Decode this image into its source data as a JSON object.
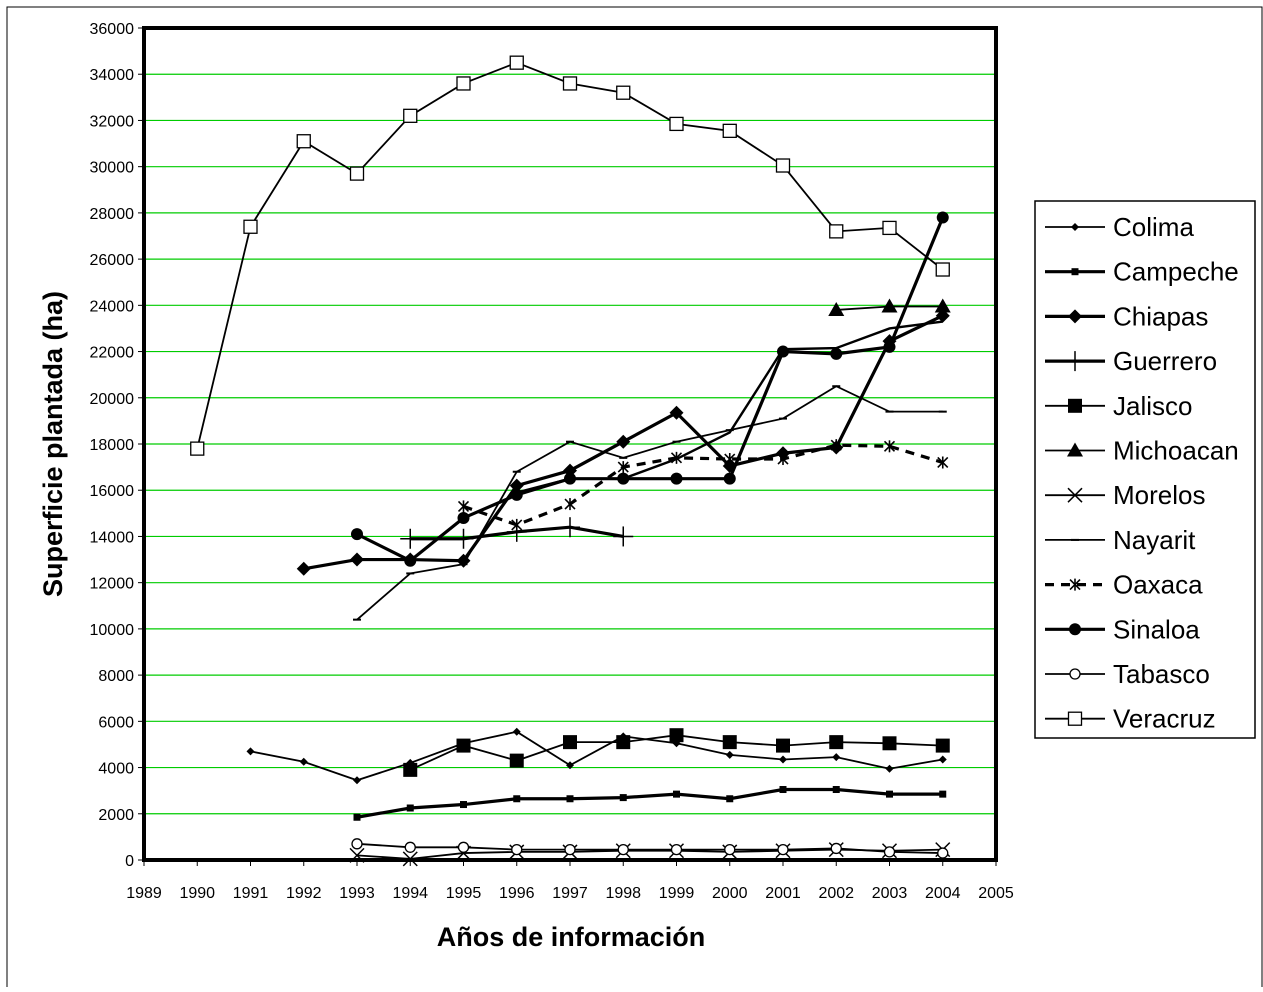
{
  "chart_data": {
    "type": "line",
    "xlabel": "Años de información",
    "ylabel": "Superficie plantada (ha)",
    "xlim": [
      1989,
      2005
    ],
    "ylim": [
      0,
      36000
    ],
    "x_ticks": [
      "1989",
      "1990",
      "1991",
      "1992",
      "1993",
      "1994",
      "1995",
      "1996",
      "1997",
      "1998",
      "1999",
      "2000",
      "2001",
      "2002",
      "2003",
      "2004",
      "2005"
    ],
    "y_ticks": [
      "0",
      "2000",
      "4000",
      "6000",
      "8000",
      "10000",
      "12000",
      "14000",
      "16000",
      "18000",
      "20000",
      "22000",
      "24000",
      "26000",
      "28000",
      "30000",
      "32000",
      "34000",
      "36000"
    ],
    "grid": true,
    "grid_color": "#00cc00",
    "legend_position": "right",
    "series": [
      {
        "name": "Colima",
        "marker": "diamond-small",
        "line": "thin",
        "points": [
          [
            1991,
            4700
          ],
          [
            1992,
            4250
          ],
          [
            1993,
            3450
          ],
          [
            1994,
            4200
          ],
          [
            1995,
            5050
          ],
          [
            1996,
            5550
          ],
          [
            1997,
            4100
          ],
          [
            1998,
            5350
          ],
          [
            1999,
            5050
          ],
          [
            2000,
            4550
          ],
          [
            2001,
            4350
          ],
          [
            2002,
            4450
          ],
          [
            2003,
            3950
          ],
          [
            2004,
            4350
          ]
        ]
      },
      {
        "name": "Campeche",
        "marker": "square-small",
        "line": "thick",
        "points": [
          [
            1993,
            1850
          ],
          [
            1994,
            2250
          ],
          [
            1995,
            2400
          ],
          [
            1996,
            2650
          ],
          [
            1997,
            2650
          ],
          [
            1998,
            2700
          ],
          [
            1999,
            2850
          ],
          [
            2000,
            2650
          ],
          [
            2001,
            3050
          ],
          [
            2002,
            3050
          ],
          [
            2003,
            2850
          ],
          [
            2004,
            2850
          ]
        ]
      },
      {
        "name": "Chiapas",
        "marker": "diamond",
        "line": "thick",
        "points": [
          [
            1992,
            12600
          ],
          [
            1993,
            13000
          ],
          [
            1994,
            13000
          ],
          [
            1995,
            12950
          ],
          [
            1996,
            16200
          ],
          [
            1997,
            16850
          ],
          [
            1998,
            18100
          ],
          [
            1999,
            19350
          ],
          [
            2000,
            17050
          ],
          [
            2001,
            17600
          ],
          [
            2002,
            17850
          ],
          [
            2003,
            22450
          ],
          [
            2004,
            23550
          ]
        ]
      },
      {
        "name": "Guerrero",
        "marker": "plus",
        "line": "thick",
        "points": [
          [
            1994,
            13900
          ],
          [
            1995,
            13900
          ],
          [
            1996,
            14200
          ],
          [
            1997,
            14400
          ],
          [
            1998,
            14000
          ]
        ]
      },
      {
        "name": "Jalisco",
        "marker": "square",
        "line": "thin",
        "points": [
          [
            1994,
            3900
          ],
          [
            1995,
            4950
          ],
          [
            1996,
            4300
          ],
          [
            1997,
            5100
          ],
          [
            1998,
            5100
          ],
          [
            1999,
            5400
          ],
          [
            2000,
            5100
          ],
          [
            2001,
            4950
          ],
          [
            2002,
            5100
          ],
          [
            2003,
            5050
          ],
          [
            2004,
            4950
          ]
        ]
      },
      {
        "name": "Michoacan",
        "marker": "triangle",
        "line": "thin",
        "points": [
          [
            2002,
            23800
          ],
          [
            2003,
            23950
          ],
          [
            2004,
            23950
          ]
        ]
      },
      {
        "name": "Morelos",
        "marker": "x",
        "line": "thin",
        "points": [
          [
            1993,
            200
          ],
          [
            1994,
            50
          ],
          [
            1995,
            300
          ],
          [
            1996,
            350
          ],
          [
            1997,
            350
          ],
          [
            1998,
            400
          ],
          [
            1999,
            400
          ],
          [
            2000,
            350
          ],
          [
            2001,
            400
          ],
          [
            2002,
            450
          ],
          [
            2003,
            400
          ],
          [
            2004,
            450
          ]
        ]
      },
      {
        "name": "Nayarit",
        "marker": "dash",
        "line": "thin",
        "points": [
          [
            1993,
            10400
          ],
          [
            1994,
            12400
          ],
          [
            1995,
            12800
          ],
          [
            1996,
            16800
          ],
          [
            1997,
            18100
          ],
          [
            1998,
            17400
          ],
          [
            1999,
            18100
          ],
          [
            2000,
            18600
          ],
          [
            2001,
            19100
          ],
          [
            2002,
            20500
          ],
          [
            2003,
            19400
          ],
          [
            2004,
            19400
          ]
        ]
      },
      {
        "name": "Oaxaca",
        "marker": "star",
        "line": "dashed",
        "points": [
          [
            1995,
            15300
          ],
          [
            1996,
            14500
          ],
          [
            1997,
            15400
          ],
          [
            1998,
            17000
          ],
          [
            1999,
            17400
          ],
          [
            2000,
            17350
          ],
          [
            2001,
            17350
          ],
          [
            2002,
            17950
          ],
          [
            2003,
            17900
          ],
          [
            2004,
            17200
          ]
        ]
      },
      {
        "name": "Sinaloa",
        "marker": "circle-filled",
        "line": "thick",
        "points": [
          [
            1993,
            14100
          ],
          [
            1994,
            12950
          ],
          [
            1995,
            14800
          ],
          [
            1996,
            15800
          ],
          [
            1997,
            16500
          ],
          [
            1998,
            16500
          ],
          [
            1999,
            16500
          ],
          [
            2000,
            16500
          ],
          [
            2001,
            22000
          ],
          [
            2002,
            21900
          ],
          [
            2003,
            22200
          ],
          [
            2004,
            27800
          ]
        ]
      },
      {
        "name": "Tabasco",
        "marker": "circle-open",
        "line": "thin",
        "points": [
          [
            1993,
            700
          ],
          [
            1994,
            550
          ],
          [
            1995,
            550
          ],
          [
            1996,
            450
          ],
          [
            1997,
            450
          ],
          [
            1998,
            450
          ],
          [
            1999,
            450
          ],
          [
            2000,
            450
          ],
          [
            2001,
            450
          ],
          [
            2002,
            500
          ],
          [
            2003,
            350
          ],
          [
            2004,
            300
          ]
        ]
      },
      {
        "name": "Veracruz",
        "marker": "square-open",
        "line": "thin",
        "points": [
          [
            1990,
            17800
          ],
          [
            1991,
            27400
          ],
          [
            1992,
            31100
          ],
          [
            1993,
            29700
          ],
          [
            1994,
            32200
          ],
          [
            1995,
            33600
          ],
          [
            1996,
            34500
          ],
          [
            1997,
            33600
          ],
          [
            1998,
            33200
          ],
          [
            1999,
            31850
          ],
          [
            2000,
            31550
          ],
          [
            2001,
            30050
          ],
          [
            2002,
            27200
          ],
          [
            2003,
            27350
          ],
          [
            2004,
            25550
          ]
        ]
      }
    ],
    "extra_lines": [
      {
        "series": "Chiapas-trace",
        "points": [
          [
            1996,
            15900
          ],
          [
            1997,
            16500
          ],
          [
            1998,
            16500
          ],
          [
            1999,
            17350
          ],
          [
            2000,
            18500
          ],
          [
            2001,
            22100
          ],
          [
            2002,
            22150
          ],
          [
            2003,
            23000
          ],
          [
            2004,
            23300
          ]
        ]
      }
    ]
  }
}
